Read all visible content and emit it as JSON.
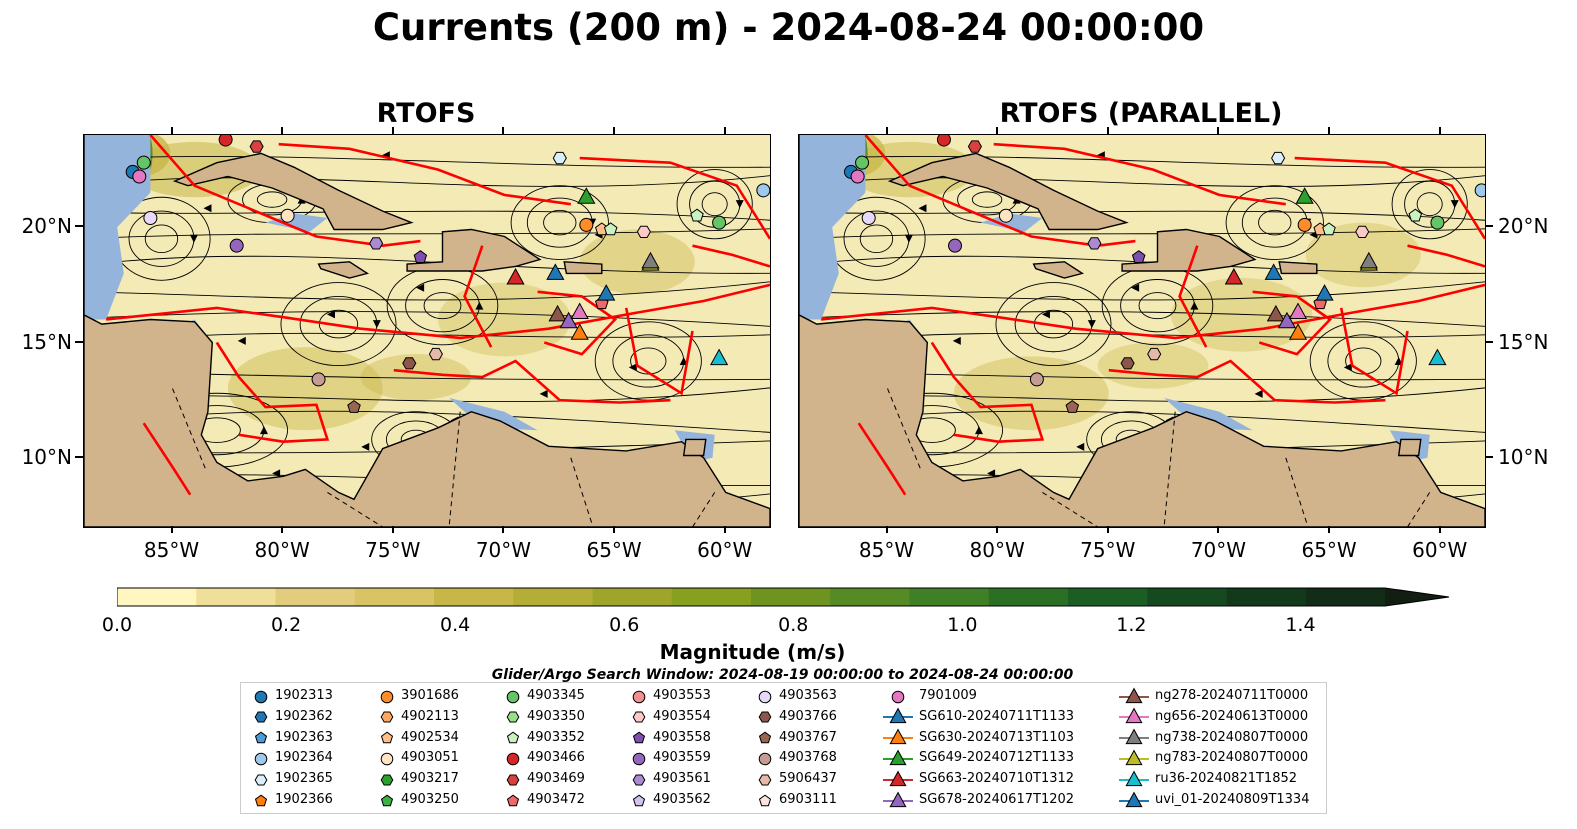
{
  "title": "Currents (200 m) - 2024-08-24 00:00:00",
  "panels": [
    {
      "title": "RTOFS"
    },
    {
      "title": "RTOFS (PARALLEL)"
    }
  ],
  "axes": {
    "x_ticks": [
      "85°W",
      "80°W",
      "75°W",
      "70°W",
      "65°W",
      "60°W"
    ],
    "y_ticks": [
      "20°N",
      "15°N",
      "10°N"
    ],
    "lon_range": [
      -89,
      -58
    ],
    "lat_range": [
      7,
      24
    ]
  },
  "colorbar": {
    "label": "Magnitude (m/s)",
    "ticks": [
      "0.0",
      "0.2",
      "0.4",
      "0.6",
      "0.8",
      "1.0",
      "1.2",
      "1.4"
    ],
    "range": [
      0,
      1.5
    ],
    "extend": "max",
    "colors": [
      "#fff6c0",
      "#f0df98",
      "#e2cd7e",
      "#d8c464",
      "#c7b748",
      "#b4ad36",
      "#9fa52a",
      "#87a01f",
      "#6e9320",
      "#558a24",
      "#3f7f26",
      "#2b6f25",
      "#1b5e24",
      "#154a20",
      "#13391b",
      "#132c17",
      "#131e12"
    ]
  },
  "search_window": "Glider/Argo Search Window: 2024-08-19 00:00:00 to 2024-08-24 00:00:00",
  "legend": [
    {
      "label": "1902313",
      "marker": "circle",
      "color": "#1f77b4"
    },
    {
      "label": "1902362",
      "marker": "hexagon",
      "color": "#1f77b4"
    },
    {
      "label": "1902363",
      "marker": "pentagon",
      "color": "#4c9bd6"
    },
    {
      "label": "1902364",
      "marker": "circle",
      "color": "#9ec9ea"
    },
    {
      "label": "1902365",
      "marker": "hexagon",
      "color": "#dbeefa"
    },
    {
      "label": "1902366",
      "marker": "pentagon",
      "color": "#ff7f0e"
    },
    {
      "label": "3901686",
      "marker": "circle",
      "color": "#ff8c2a"
    },
    {
      "label": "4902113",
      "marker": "hexagon",
      "color": "#ffa660"
    },
    {
      "label": "4902534",
      "marker": "pentagon",
      "color": "#ffc08c"
    },
    {
      "label": "4903051",
      "marker": "circle",
      "color": "#ffe4c4"
    },
    {
      "label": "4903217",
      "marker": "hexagon",
      "color": "#2ca02c"
    },
    {
      "label": "4903250",
      "marker": "pentagon",
      "color": "#3cb043"
    },
    {
      "label": "4903345",
      "marker": "circle",
      "color": "#65c466"
    },
    {
      "label": "4903350",
      "marker": "hexagon",
      "color": "#98df8a"
    },
    {
      "label": "4903352",
      "marker": "pentagon",
      "color": "#c9f2c0"
    },
    {
      "label": "4903466",
      "marker": "circle",
      "color": "#d62728"
    },
    {
      "label": "4903469",
      "marker": "hexagon",
      "color": "#d9403f"
    },
    {
      "label": "4903472",
      "marker": "pentagon",
      "color": "#ee6a6a"
    },
    {
      "label": "4903553",
      "marker": "circle",
      "color": "#f28f8f"
    },
    {
      "label": "4903554",
      "marker": "hexagon",
      "color": "#fcc8c8"
    },
    {
      "label": "4903558",
      "marker": "pentagon",
      "color": "#7e4fb0"
    },
    {
      "label": "4903559",
      "marker": "circle",
      "color": "#9467bd"
    },
    {
      "label": "4903561",
      "marker": "hexagon",
      "color": "#ab8ad1"
    },
    {
      "label": "4903562",
      "marker": "pentagon",
      "color": "#d4c2ee"
    },
    {
      "label": "4903563",
      "marker": "circle",
      "color": "#e8d8fa"
    },
    {
      "label": "4903766",
      "marker": "hexagon",
      "color": "#8c564b"
    },
    {
      "label": "4903767",
      "marker": "pentagon",
      "color": "#9a6454"
    },
    {
      "label": "4903768",
      "marker": "circle",
      "color": "#c49c94"
    },
    {
      "label": "5906437",
      "marker": "hexagon",
      "color": "#e6b8aa"
    },
    {
      "label": "6903111",
      "marker": "pentagon",
      "color": "#fde4d8"
    },
    {
      "label": "7901009",
      "marker": "circle",
      "color": "#e377c2"
    },
    {
      "label": "SG610-20240711T1133",
      "marker": "triangle",
      "color": "#1f77b4"
    },
    {
      "label": "SG630-20240713T1103",
      "marker": "triangle",
      "color": "#ff7f0e"
    },
    {
      "label": "SG649-20240712T1133",
      "marker": "triangle",
      "color": "#2ca02c"
    },
    {
      "label": "SG663-20240710T1312",
      "marker": "triangle",
      "color": "#d62728"
    },
    {
      "label": "SG678-20240617T1202",
      "marker": "triangle",
      "color": "#9467bd"
    },
    {
      "label": "ng278-20240711T0000",
      "marker": "triangle",
      "color": "#8c564b"
    },
    {
      "label": "ng656-20240613T0000",
      "marker": "triangle",
      "color": "#e377c2"
    },
    {
      "label": "ng738-20240807T0000",
      "marker": "triangle",
      "color": "#7f7f7f"
    },
    {
      "label": "ng783-20240807T0000",
      "marker": "triangle",
      "color": "#bcbd22"
    },
    {
      "label": "ru36-20240821T1852",
      "marker": "triangle",
      "color": "#17becf"
    },
    {
      "label": "uvi_01-20240809T1334",
      "marker": "triangle",
      "color": "#1f77b4"
    }
  ],
  "colors": {
    "land": "#d2b48c",
    "shelf": "#94b4dc",
    "boundary": "#ff0000",
    "low_speed": "#f4eab6",
    "mid_speed": "#c7b748",
    "high_speed": "#3f7f26"
  }
}
